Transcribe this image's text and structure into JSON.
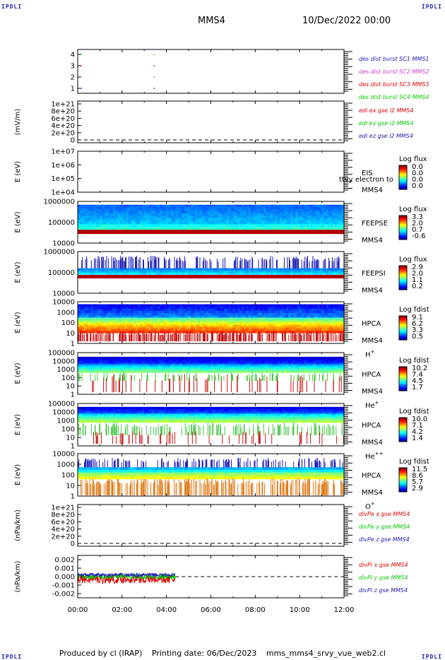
{
  "corners": {
    "tl": "IPDLI",
    "tr": "IPDLI",
    "bl": "IPDLI",
    "br": "IPDLI"
  },
  "header": {
    "spacecraft": "MMS4",
    "datetime": "10/Dec/2022 00:00"
  },
  "footer": {
    "produced": "Produced by cl (IRAP)",
    "printed": "Printing date: 06/Dec/2023",
    "file": "mms_mms4_srvy_vue_web2.cl"
  },
  "chart_data": [
    {
      "id": "burst",
      "type": "scatter",
      "yticks": [
        "1",
        "2",
        "3",
        "4"
      ],
      "ylim": [
        0.5,
        4.5
      ],
      "series": [
        {
          "name": "des dist burst SC1 MMS1",
          "color": "#1a1ab4",
          "y": 1,
          "x_hours": [
            0.15,
            3.45
          ]
        },
        {
          "name": "des dist burst SC2 MMS2",
          "color": "#c83cc8",
          "y": 2,
          "x_hours": [
            0.15,
            3.45
          ]
        },
        {
          "name": "des dist burst SC3 MMS3",
          "color": "#dc0000",
          "y": 3,
          "x_hours": [
            0.15,
            3.45
          ]
        },
        {
          "name": "des dist burst SC4 MMS4",
          "color": "#00c800",
          "y": 4,
          "x_hours": [
            0.15,
            3.45
          ]
        }
      ]
    },
    {
      "id": "edi",
      "type": "line",
      "ylabel": "(mV/m)",
      "yticks": [
        "1e+21",
        "8e+20",
        "6e+20",
        "4e+20",
        "2e+20",
        "0"
      ],
      "ylim": [
        0,
        1e+21
      ],
      "series": [
        {
          "name": "edi ex gse l2 MMS4",
          "color": "#dc0000"
        },
        {
          "name": "edi ey gse l2 MMS4",
          "color": "#00c800"
        },
        {
          "name": "edi ez gse l2 MMS4",
          "color": "#1a1ab4"
        }
      ]
    },
    {
      "id": "eis",
      "type": "heatmap",
      "ylabel": "E (eV)",
      "yticks": [
        "1e+07",
        "1e+06",
        "1e+05",
        "1e+04"
      ],
      "ylim": [
        10000,
        10000000
      ],
      "labels": [
        "EIS",
        "MMS4"
      ],
      "overlay_text": "ttvy electron to",
      "colorbar": {
        "title": "Log flux",
        "ticks": [
          "0.0",
          "0.0",
          "0.0",
          "0.0"
        ]
      }
    },
    {
      "id": "feepse",
      "type": "heatmap",
      "ylabel": "E (eV)",
      "yticks": [
        "1000000",
        "100000",
        "10000"
      ],
      "ylim": [
        10000,
        1000000
      ],
      "labels": [
        "FEEPSE",
        "MMS4"
      ],
      "colorbar": {
        "title": "Log flux",
        "ticks": [
          "3.3",
          "2.0",
          "0.7",
          "-0.6"
        ]
      }
    },
    {
      "id": "feepsi",
      "type": "heatmap",
      "ylabel": "E (eV)",
      "yticks": [
        "1000000",
        "100000",
        "10000"
      ],
      "ylim": [
        10000,
        1000000
      ],
      "labels": [
        "FEEPSI",
        "MMS4"
      ],
      "colorbar": {
        "title": "Log flux",
        "ticks": [
          "2.9",
          "2.0",
          "1.1",
          "0.2"
        ]
      }
    },
    {
      "id": "hpca-h",
      "type": "heatmap",
      "ylabel": "E (eV)",
      "yticks": [
        "10000",
        "1000",
        "100",
        "10",
        "1"
      ],
      "ylim": [
        1,
        30000
      ],
      "labels": [
        "HPCA",
        "MMS4"
      ],
      "species": "H",
      "charge": "+",
      "colorbar": {
        "title": "Log fdist",
        "ticks": [
          "9.1",
          "6.2",
          "3.3",
          "0.5"
        ]
      }
    },
    {
      "id": "hpca-he",
      "type": "heatmap",
      "ylabel": "E (eV)",
      "yticks": [
        "100000",
        "10000",
        "1000",
        "100",
        "10",
        "1"
      ],
      "ylim": [
        1,
        100000
      ],
      "labels": [
        "HPCA",
        "MMS4"
      ],
      "species": "He",
      "charge": "+",
      "colorbar": {
        "title": "Log fdist",
        "ticks": [
          "10.2",
          "7.4",
          "4.5",
          "1.7"
        ]
      }
    },
    {
      "id": "hpca-he2",
      "type": "heatmap",
      "ylabel": "E (eV)",
      "yticks": [
        "100000",
        "10000",
        "1000",
        "100",
        "10",
        "1"
      ],
      "ylim": [
        1,
        100000
      ],
      "labels": [
        "HPCA",
        "MMS4"
      ],
      "species": "He",
      "charge": "++",
      "colorbar": {
        "title": "Log fdist",
        "ticks": [
          "10.0",
          "7.1",
          "4.2",
          "1.4"
        ]
      }
    },
    {
      "id": "hpca-o",
      "type": "heatmap",
      "ylabel": "E (eV)",
      "yticks": [
        "10000",
        "1000",
        "100",
        "10",
        "1"
      ],
      "ylim": [
        1,
        30000
      ],
      "labels": [
        "HPCA",
        "MMS4"
      ],
      "species": "O",
      "charge": "+",
      "colorbar": {
        "title": "Log fdist",
        "ticks": [
          "11.5",
          "8.6",
          "5.7",
          "2.9"
        ]
      }
    },
    {
      "id": "divpe",
      "type": "line",
      "ylabel": "(nPa/km)",
      "yticks": [
        "1e+21",
        "8e+20",
        "6e+20",
        "4e+20",
        "2e+20",
        "0"
      ],
      "ylim": [
        0,
        1e+21
      ],
      "series": [
        {
          "name": "divPe x gse MMS4",
          "color": "#dc0000"
        },
        {
          "name": "divPe y gse MMS4",
          "color": "#00c800"
        },
        {
          "name": "divPe z gse MMS4",
          "color": "#1a1ab4"
        }
      ]
    },
    {
      "id": "divpi",
      "type": "line",
      "ylabel": "(nPa/km)",
      "yticks": [
        "0.002",
        "0.001",
        "0.000",
        "-0.001",
        "-0.002"
      ],
      "ylim": [
        -0.0025,
        0.0025
      ],
      "data_end_hours": 4.4,
      "series": [
        {
          "name": "divPi x gse MMS4",
          "color": "#dc0000",
          "amplitude": 0.0005,
          "offset": -0.0003
        },
        {
          "name": "divPi y gse MMS4",
          "color": "#00c800",
          "amplitude": 0.0003,
          "offset": 0.0
        },
        {
          "name": "divPi z gse MMS4",
          "color": "#1a1ab4",
          "amplitude": 0.0002,
          "offset": 0.0002
        }
      ]
    }
  ],
  "xaxis": {
    "ticks": [
      "00:00",
      "02:00",
      "04:00",
      "06:00",
      "08:00",
      "10:00",
      "12:00"
    ],
    "xlim_hours": [
      0,
      12
    ]
  },
  "colors": {
    "text_blue": "#1a1ab4",
    "frame": "#000000",
    "dash": "#000000"
  }
}
